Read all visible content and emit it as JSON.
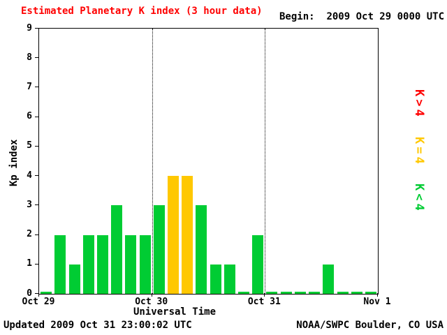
{
  "header": {
    "title": "Estimated Planetary K index (3 hour data)",
    "begin_label": "Begin:",
    "begin_value": "2009 Oct 29 0000 UTC"
  },
  "footer": {
    "updated": "Updated 2009 Oct 31 23:00:02 UTC",
    "source": "NOAA/SWPC Boulder, CO USA"
  },
  "legend": [
    {
      "label": "K>4",
      "color": "#ff0000"
    },
    {
      "label": "K=4",
      "color": "#ffc800"
    },
    {
      "label": "K<4",
      "color": "#00cc33"
    }
  ],
  "chart_data": {
    "type": "bar",
    "title": "Estimated Planetary K index (3 hour data)",
    "xlabel": "Universal Time",
    "ylabel": "Kp index",
    "ylim": [
      0,
      9
    ],
    "yticks": [
      0,
      1,
      2,
      3,
      4,
      5,
      6,
      7,
      8,
      9
    ],
    "x_tick_labels": [
      "Oct 29",
      "Oct 30",
      "Oct 31",
      "Nov 1"
    ],
    "hours_per_bar": 3,
    "values": [
      0,
      2,
      1,
      2,
      2,
      3,
      2,
      2,
      3,
      4,
      4,
      3,
      1,
      1,
      0,
      2,
      0,
      0,
      0,
      0,
      1,
      0,
      0,
      0
    ],
    "bar_colors": {
      "lt4": "#00cc33",
      "eq4": "#ffc800",
      "gt4": "#ff0000"
    },
    "grid": "dotted vertical lines at day boundaries",
    "legend_position": "right"
  }
}
